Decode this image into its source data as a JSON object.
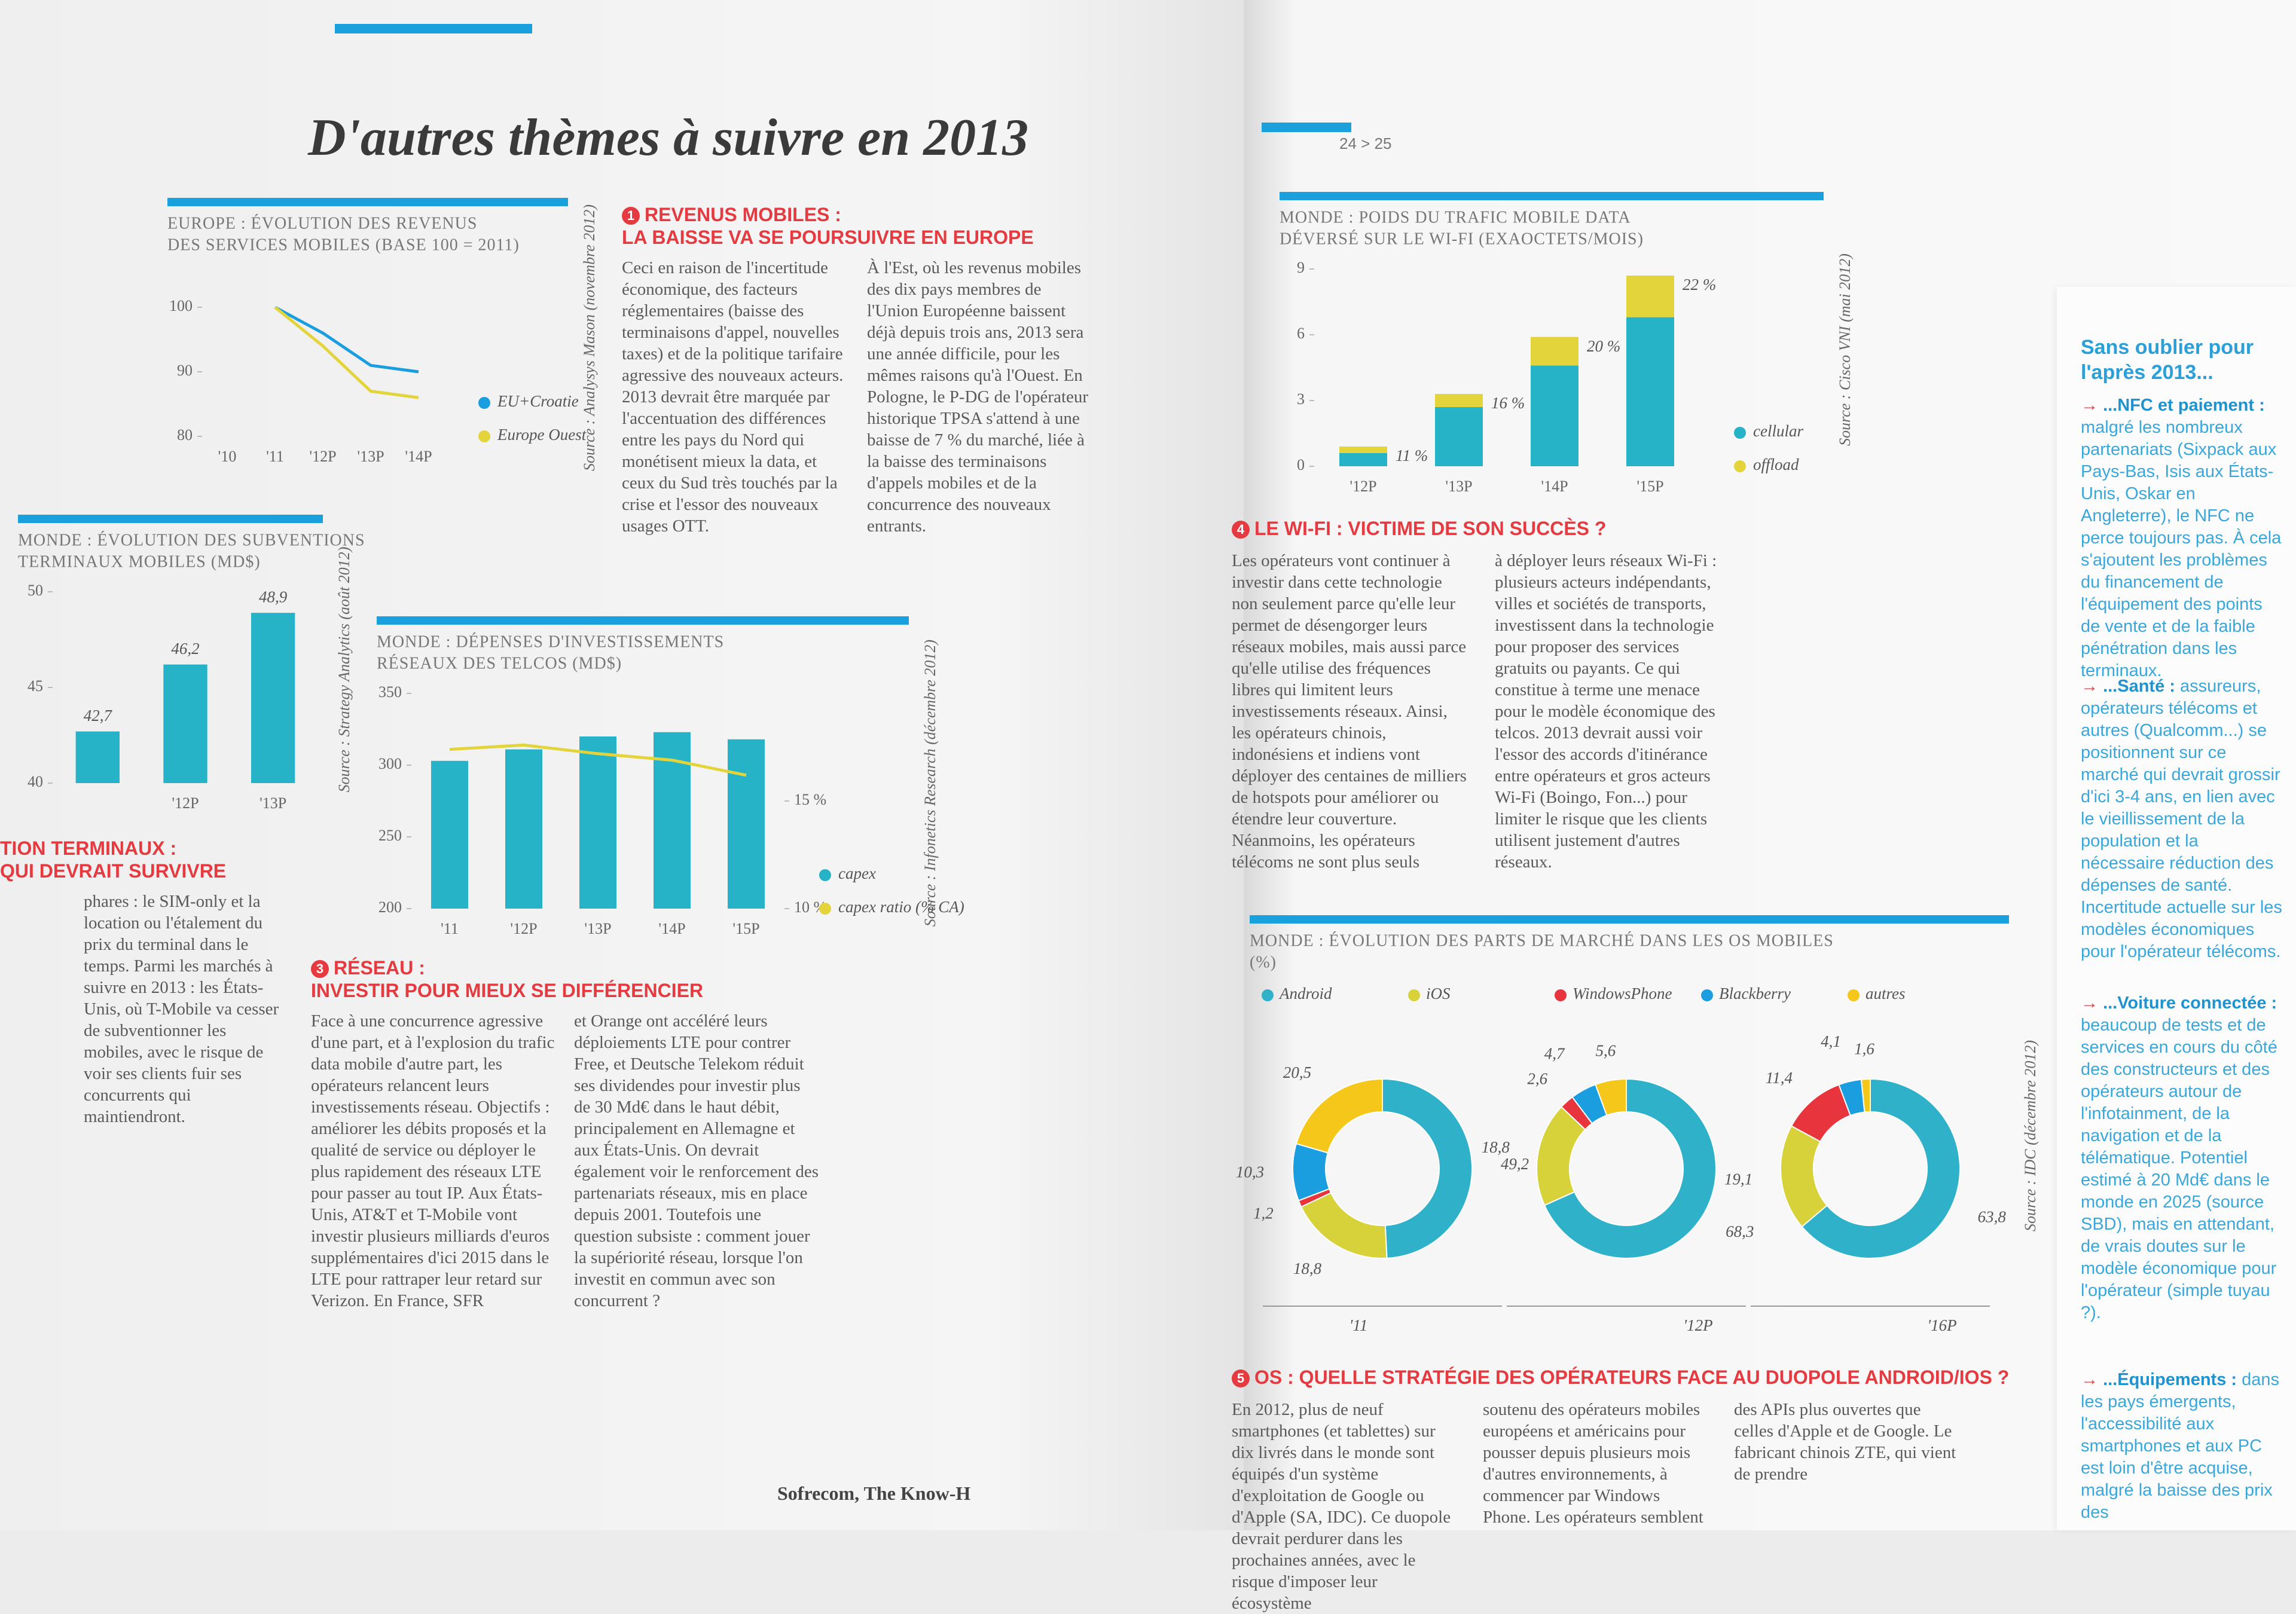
{
  "header": {
    "title": "D'autres thèmes à suivre en 2013",
    "page_number": "24 > 25"
  },
  "sections": [
    {
      "number": "1",
      "heading": [
        "REVENUS MOBILES :",
        "LA BAISSE VA SE POURSUIVRE EN EUROPE"
      ],
      "columns": [
        "Ceci en raison de l'incertitude économique, des facteurs réglementaires (baisse des terminaisons d'appel, nouvelles taxes) et de la politique tarifaire agressive des nouveaux acteurs. 2013 devrait être marquée par l'accentuation des différences entre les pays du Nord qui monétisent mieux la data, et ceux du Sud très touchés par la crise et l'essor des nouveaux usages OTT.",
        "À l'Est, où les revenus mobiles des dix pays membres de l'Union Européenne baissent déjà depuis trois ans, 2013 sera une année difficile, pour les mêmes raisons qu'à l'Ouest. En Pologne, le P-DG de l'opérateur historique TPSA s'attend à une baisse de 7 % du marché, liée à la baisse des terminaisons d'appels mobiles et de la concurrence des nouveaux entrants."
      ]
    },
    {
      "heading": [
        "TION TERMINAUX :",
        "QUI DEVRAIT SURVIVRE"
      ],
      "columns": [
        "phares : le SIM-only et la location ou l'étalement du prix du terminal dans le temps. Parmi les marchés à suivre en 2013 : les États-Unis, où T-Mobile va cesser de subventionner les mobiles, avec le risque de voir ses clients fuir ses concurrents qui maintiendront."
      ]
    },
    {
      "number": "3",
      "heading": [
        "RÉSEAU :",
        "INVESTIR POUR MIEUX SE DIFFÉRENCIER"
      ],
      "columns": [
        "Face à une concurrence agressive d'une part, et à l'explosion du trafic data mobile d'autre part, les opérateurs relancent leurs investissements réseau. Objectifs : améliorer les débits proposés et la qualité de service ou déployer le plus rapidement des réseaux LTE pour passer au tout IP. Aux États-Unis, AT&T et T-Mobile vont investir plusieurs milliards d'euros supplémentaires d'ici 2015 dans le LTE pour rattraper leur retard sur Verizon. En France, SFR",
        "et Orange ont accéléré leurs déploiements LTE pour contrer Free, et Deutsche Telekom réduit ses dividendes pour investir plus de 30 Md€ dans le haut débit, principalement en Allemagne et aux États-Unis. On devrait également voir le renforcement des partenariats réseaux, mis en place depuis 2001. Toutefois une question subsiste : comment jouer la supériorité réseau, lorsque l'on investit en commun avec son concurrent ?"
      ]
    },
    {
      "number": "4",
      "heading": [
        "LE WI-FI : VICTIME DE SON SUCCÈS ?"
      ],
      "columns": [
        "Les opérateurs vont continuer à investir dans cette technologie non seulement parce qu'elle leur permet de désengorger leurs réseaux mobiles, mais aussi parce qu'elle utilise des fréquences libres qui limitent leurs investissements réseaux. Ainsi, les opérateurs chinois, indonésiens et indiens vont déployer des centaines de milliers de hotspots pour améliorer ou étendre leur couverture. Néanmoins, les opérateurs télécoms ne sont plus seuls",
        "à déployer leurs réseaux Wi-Fi : plusieurs acteurs indépendants, villes et sociétés de transports, investissent dans la technologie pour proposer des services gratuits ou payants. Ce qui constitue à terme une menace pour le modèle économique des telcos. 2013 devrait aussi voir l'essor des accords d'itinérance entre opérateurs et gros acteurs Wi-Fi (Boingo, Fon...) pour limiter le risque que les clients utilisent justement d'autres réseaux."
      ]
    },
    {
      "number": "5",
      "heading": [
        "OS : QUELLE STRATÉGIE DES OPÉRATEURS FACE AU DUOPOLE ANDROID/IOS ?"
      ],
      "columns": [
        "En 2012, plus de neuf smartphones (et tablettes) sur dix livrés dans le monde sont équipés d'un système d'exploitation de Google ou d'Apple (SA, IDC). Ce duopole devrait perdurer dans les prochaines années, avec le risque d'imposer leur écosystème",
        "soutenu des opérateurs mobiles européens et américains pour pousser depuis plusieurs mois d'autres environnements, à commencer par Windows Phone. Les opérateurs semblent",
        "des APIs plus ouvertes que celles d'Apple et de Google. Le fabricant chinois ZTE, qui vient de prendre"
      ]
    }
  ],
  "sidebar": {
    "title": "Sans oublier pour l'après 2013...",
    "items": [
      {
        "lead": "...NFC et paiement :",
        "text": "malgré les nombreux partenariats (Sixpack aux Pays-Bas, Isis aux États-Unis, Oskar en Angleterre), le NFC ne perce toujours pas. À cela s'ajoutent les problèmes du financement de l'équipement des points de vente et de la faible pénétration dans les terminaux."
      },
      {
        "lead": "...Santé :",
        "text": "assureurs, opérateurs télécoms et autres (Qualcomm...) se positionnent sur ce marché qui devrait grossir d'ici 3-4 ans, en lien avec le vieillissement de la population et la nécessaire réduction des dépenses de santé. Incertitude actuelle sur les modèles économiques pour l'opérateur télécoms."
      },
      {
        "lead": "...Voiture connectée :",
        "text": "beaucoup de tests et de services en cours du côté des constructeurs et des opérateurs autour de l'infotainment, de la navigation et de la télématique. Potentiel estimé à 20 Md€ dans le monde en 2025 (source SBD), mais en attendant, de vrais doutes sur le modèle économique pour l'opérateur (simple tuyau ?)."
      },
      {
        "lead": "...Équipements :",
        "text": "dans les pays émergents, l'accessibilité aux smartphones et aux PC est loin d'être acquise, malgré la baisse des prix des"
      }
    ]
  },
  "footer": "Sofrecom, The Know-H",
  "chart_data": [
    {
      "type": "line",
      "title": "EUROPE : ÉVOLUTION DES REVENUS",
      "subtitle": "DES SERVICES MOBILES (BASE 100 = 2011)",
      "source": "Source : Analysys Mason (novembre 2012)",
      "categories": [
        "'10",
        "'11",
        "'12P",
        "'13P",
        "'14P"
      ],
      "series": [
        {
          "name": "EU+Croatie",
          "color": "#1a9ee0",
          "values": [
            null,
            100,
            96,
            91,
            90
          ]
        },
        {
          "name": "Europe Ouest",
          "color": "#e2d43a",
          "values": [
            null,
            100,
            94,
            87,
            86
          ]
        }
      ],
      "ylim": [
        80,
        105
      ],
      "yticks": [
        80,
        90,
        100
      ],
      "grid": false,
      "legend": "right"
    },
    {
      "type": "bar",
      "title": "MONDE : ÉVOLUTION DES SUBVENTIONS",
      "subtitle": "TERMINAUX MOBILES (MD$)",
      "source": "Source : Strategy Analytics (août 2012)",
      "categories": [
        null,
        "'12P",
        "'13P"
      ],
      "values": [
        42.7,
        46.2,
        48.9
      ],
      "value_labels": [
        "42,7",
        "46,2",
        "48,9"
      ],
      "color": "#26b3c8",
      "ylim": [
        40,
        50
      ],
      "yticks": [
        40,
        45,
        50
      ],
      "grid": false
    },
    {
      "type": "bar",
      "title": "MONDE : DÉPENSES D'INVESTISSEMENTS",
      "subtitle": "RÉSEAUX DES TELCOS (MD$)",
      "source": "Source : Infonetics Research (décembre 2012)",
      "categories": [
        "'11",
        "'12P",
        "'13P",
        "'14P",
        "'15P"
      ],
      "series": [
        {
          "name": "capex",
          "color": "#26b3c8",
          "values": [
            303,
            311,
            320,
            323,
            318
          ]
        },
        {
          "name": "capex ratio (% CA)",
          "color": "#e2d43a",
          "type": "line",
          "axis": "y2",
          "values": [
            17.4,
            17.6,
            17.2,
            16.9,
            16.2
          ]
        }
      ],
      "ylim": [
        200,
        350
      ],
      "yticks": [
        200,
        250,
        300,
        350
      ],
      "y2lim": [
        10,
        20
      ],
      "y2ticks": [
        {
          "value": 10,
          "label": "10 %"
        },
        {
          "value": 15,
          "label": "15 %"
        }
      ],
      "grid": false,
      "legend": "right"
    },
    {
      "type": "bar",
      "stacked": true,
      "title": "MONDE : POIDS DU TRAFIC MOBILE DATA",
      "subtitle": "DÉVERSÉ SUR LE WI-FI (EXAOCTETS/MOIS)",
      "source": "Source : Cisco VNI (mai 2012)",
      "categories": [
        "'12P",
        "'13P",
        "'14P",
        "'15P"
      ],
      "series": [
        {
          "name": "cellular",
          "color": "#26b3c8",
          "values": [
            0.6,
            2.7,
            4.6,
            6.8
          ]
        },
        {
          "name": "offload",
          "color": "#e2d43a",
          "values": [
            0.3,
            0.6,
            1.3,
            1.9
          ]
        }
      ],
      "shares": {
        "values": [
          11,
          16,
          20,
          22
        ],
        "value_labels": [
          "11 %",
          "16 %",
          "20 %",
          "22 %"
        ]
      },
      "ylim": [
        0,
        9
      ],
      "yticks": [
        0,
        3,
        6,
        9
      ],
      "grid": false,
      "legend": "right"
    },
    {
      "type": "pie",
      "donut": true,
      "title": "MONDE : ÉVOLUTION DES PARTS DE MARCHÉ DANS LES OS MOBILES",
      "subtitle": "(%)",
      "source": "Source : IDC (décembre 2012)",
      "categories": [
        "Android",
        "iOS",
        "WindowsPhone",
        "Blackberry",
        "autres"
      ],
      "colors": [
        "#2fb2c9",
        "#d8d23a",
        "#e8343c",
        "#1a9ee0",
        "#f5c71a"
      ],
      "series": [
        {
          "name": "'11",
          "values": [
            49.2,
            18.8,
            1.2,
            10.3,
            20.5
          ],
          "value_labels": [
            "49,2",
            "18,8",
            "1,2",
            "10,3",
            "20,5"
          ]
        },
        {
          "name": "'12P",
          "values": [
            68.3,
            18.8,
            2.6,
            4.7,
            5.6
          ],
          "value_labels": [
            "68,3",
            "18,8",
            "2,6",
            "4,7",
            "5,6"
          ]
        },
        {
          "name": "'16P",
          "values": [
            63.8,
            19.1,
            11.4,
            4.1,
            1.6
          ],
          "value_labels": [
            "63,8",
            "19,1",
            "11,4",
            "4,1",
            "1,6"
          ]
        }
      ],
      "legend": "top"
    }
  ]
}
